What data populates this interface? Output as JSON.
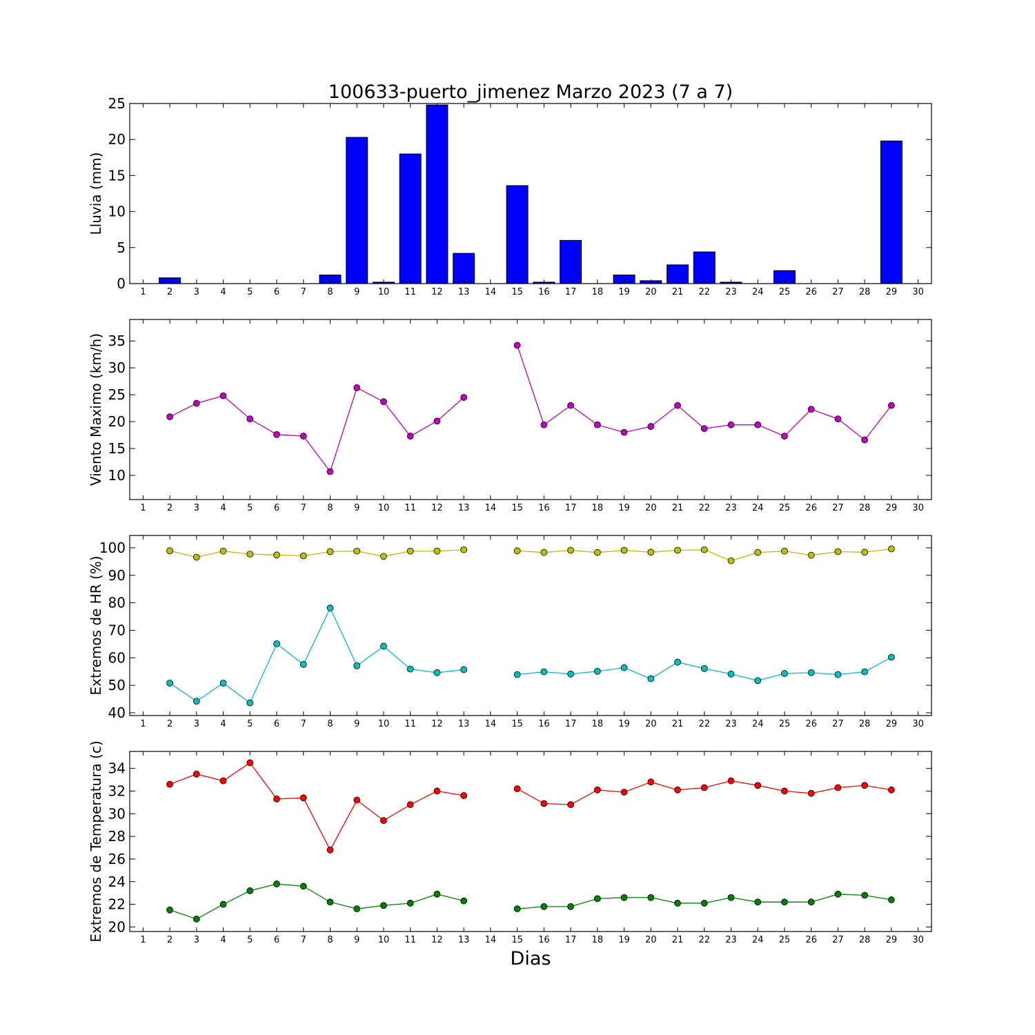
{
  "title": "100633-puerto_jimenez Marzo 2023  (7 a 7)",
  "xlabel": "Dias",
  "days": [
    1,
    2,
    3,
    4,
    5,
    6,
    7,
    8,
    9,
    10,
    11,
    12,
    13,
    14,
    15,
    16,
    17,
    18,
    19,
    20,
    21,
    22,
    23,
    24,
    25,
    26,
    27,
    28,
    29,
    30
  ],
  "chart_data": [
    {
      "type": "bar",
      "ylabel": "Lluvia (mm)",
      "ylim": [
        0,
        25
      ],
      "yticks": [
        0,
        5,
        10,
        15,
        20,
        25
      ],
      "xlim": [
        0.5,
        30.5
      ],
      "color": "#0000ff",
      "series": [
        {
          "x": [
            2,
            3,
            4,
            5,
            6,
            7,
            8,
            9,
            10,
            11,
            12,
            13,
            15,
            16,
            17,
            19,
            20,
            21,
            22,
            23,
            24,
            25,
            26,
            27,
            28,
            29
          ],
          "values": [
            0.8,
            0,
            0,
            0,
            0,
            0,
            1.2,
            20.3,
            0.2,
            18.0,
            24.8,
            4.2,
            13.6,
            0.2,
            6.0,
            1.2,
            0.4,
            2.6,
            4.4,
            0.2,
            0,
            1.8,
            0,
            0,
            0,
            19.8
          ]
        }
      ]
    },
    {
      "type": "line",
      "ylabel": "Viento Maximo (km/h)",
      "ylim": [
        5.5,
        39
      ],
      "yticks": [
        10,
        15,
        20,
        25,
        30,
        35
      ],
      "xlim": [
        0.5,
        30.5
      ],
      "series": [
        {
          "color": "#bf00bf",
          "segments": [
            {
              "x": [
                2,
                3,
                4,
                5,
                6,
                7,
                8,
                9,
                10,
                11,
                12,
                13
              ],
              "y": [
                20.9,
                23.4,
                24.8,
                20.5,
                17.6,
                17.3,
                10.7,
                26.3,
                23.7,
                17.3,
                20.1,
                24.5
              ]
            },
            {
              "x": [
                15,
                16,
                17,
                18,
                19,
                20,
                21,
                22,
                23,
                24,
                25,
                26,
                27,
                28,
                29
              ],
              "y": [
                34.2,
                19.4,
                23.0,
                19.4,
                18.0,
                19.1,
                23.0,
                18.7,
                19.4,
                19.4,
                17.3,
                22.3,
                20.5,
                16.6,
                23.0
              ]
            }
          ]
        }
      ]
    },
    {
      "type": "line",
      "ylabel": "Extremos de HR (%)",
      "ylim": [
        39,
        104.5
      ],
      "yticks": [
        40,
        50,
        60,
        70,
        80,
        90,
        100
      ],
      "xlim": [
        0.5,
        30.5
      ],
      "series": [
        {
          "color": "#bfbf00",
          "segments": [
            {
              "x": [
                2,
                3,
                4,
                5,
                6,
                7,
                8,
                9,
                10,
                11,
                12,
                13
              ],
              "y": [
                98.9,
                96.6,
                98.8,
                97.7,
                97.4,
                97.1,
                98.6,
                98.8,
                96.9,
                98.8,
                98.8,
                99.3
              ]
            },
            {
              "x": [
                15,
                16,
                17,
                18,
                19,
                20,
                21,
                22,
                23,
                24,
                25,
                26,
                27,
                28,
                29
              ],
              "y": [
                98.9,
                98.3,
                99.1,
                98.3,
                99.1,
                98.4,
                99.1,
                99.3,
                95.3,
                98.3,
                98.8,
                97.3,
                98.6,
                98.4,
                99.6
              ]
            }
          ]
        },
        {
          "color": "#00bfbf",
          "segments": [
            {
              "x": [
                2,
                3,
                4,
                5,
                6,
                7,
                8,
                9,
                10,
                11,
                12,
                13
              ],
              "y": [
                50.8,
                44.2,
                50.8,
                43.6,
                65.1,
                57.6,
                78.1,
                57.1,
                64.2,
                55.9,
                54.6,
                55.7
              ]
            },
            {
              "x": [
                15,
                16,
                17,
                18,
                19,
                20,
                21,
                22,
                23,
                24,
                25,
                26,
                27,
                28,
                29
              ],
              "y": [
                53.9,
                54.9,
                54.1,
                55.1,
                56.4,
                52.4,
                58.4,
                56.1,
                54.1,
                51.7,
                54.3,
                54.6,
                53.9,
                54.9,
                60.2
              ]
            }
          ]
        }
      ]
    },
    {
      "type": "line",
      "ylabel": "Extremos de Temperatura (c)",
      "ylim": [
        19.6,
        35.5
      ],
      "yticks": [
        20,
        22,
        24,
        26,
        28,
        30,
        32,
        34
      ],
      "xlim": [
        0.5,
        30.5
      ],
      "series": [
        {
          "color": "#ff0000",
          "segments": [
            {
              "x": [
                2,
                3,
                4,
                5,
                6,
                7,
                8,
                9,
                10,
                11,
                12,
                13
              ],
              "y": [
                32.6,
                33.5,
                32.9,
                34.5,
                31.3,
                31.4,
                26.8,
                31.2,
                29.4,
                30.8,
                32.0,
                31.6
              ]
            },
            {
              "x": [
                15,
                16,
                17,
                18,
                19,
                20,
                21,
                22,
                23,
                24,
                25,
                26,
                27,
                28,
                29
              ],
              "y": [
                32.2,
                30.9,
                30.8,
                32.1,
                31.9,
                32.8,
                32.1,
                32.3,
                32.9,
                32.5,
                32.0,
                31.8,
                32.3,
                32.5,
                32.1
              ]
            }
          ]
        },
        {
          "color": "#008000",
          "segments": [
            {
              "x": [
                2,
                3,
                4,
                5,
                6,
                7,
                8,
                9,
                10,
                11,
                12,
                13
              ],
              "y": [
                21.5,
                20.7,
                22.0,
                23.2,
                23.8,
                23.6,
                22.2,
                21.6,
                21.9,
                22.1,
                22.9,
                22.3
              ]
            },
            {
              "x": [
                15,
                16,
                17,
                18,
                19,
                20,
                21,
                22,
                23,
                24,
                25,
                26,
                27,
                28,
                29
              ],
              "y": [
                21.6,
                21.8,
                21.8,
                22.5,
                22.6,
                22.6,
                22.1,
                22.1,
                22.6,
                22.2,
                22.2,
                22.2,
                22.9,
                22.8,
                22.4
              ]
            }
          ]
        }
      ]
    }
  ]
}
